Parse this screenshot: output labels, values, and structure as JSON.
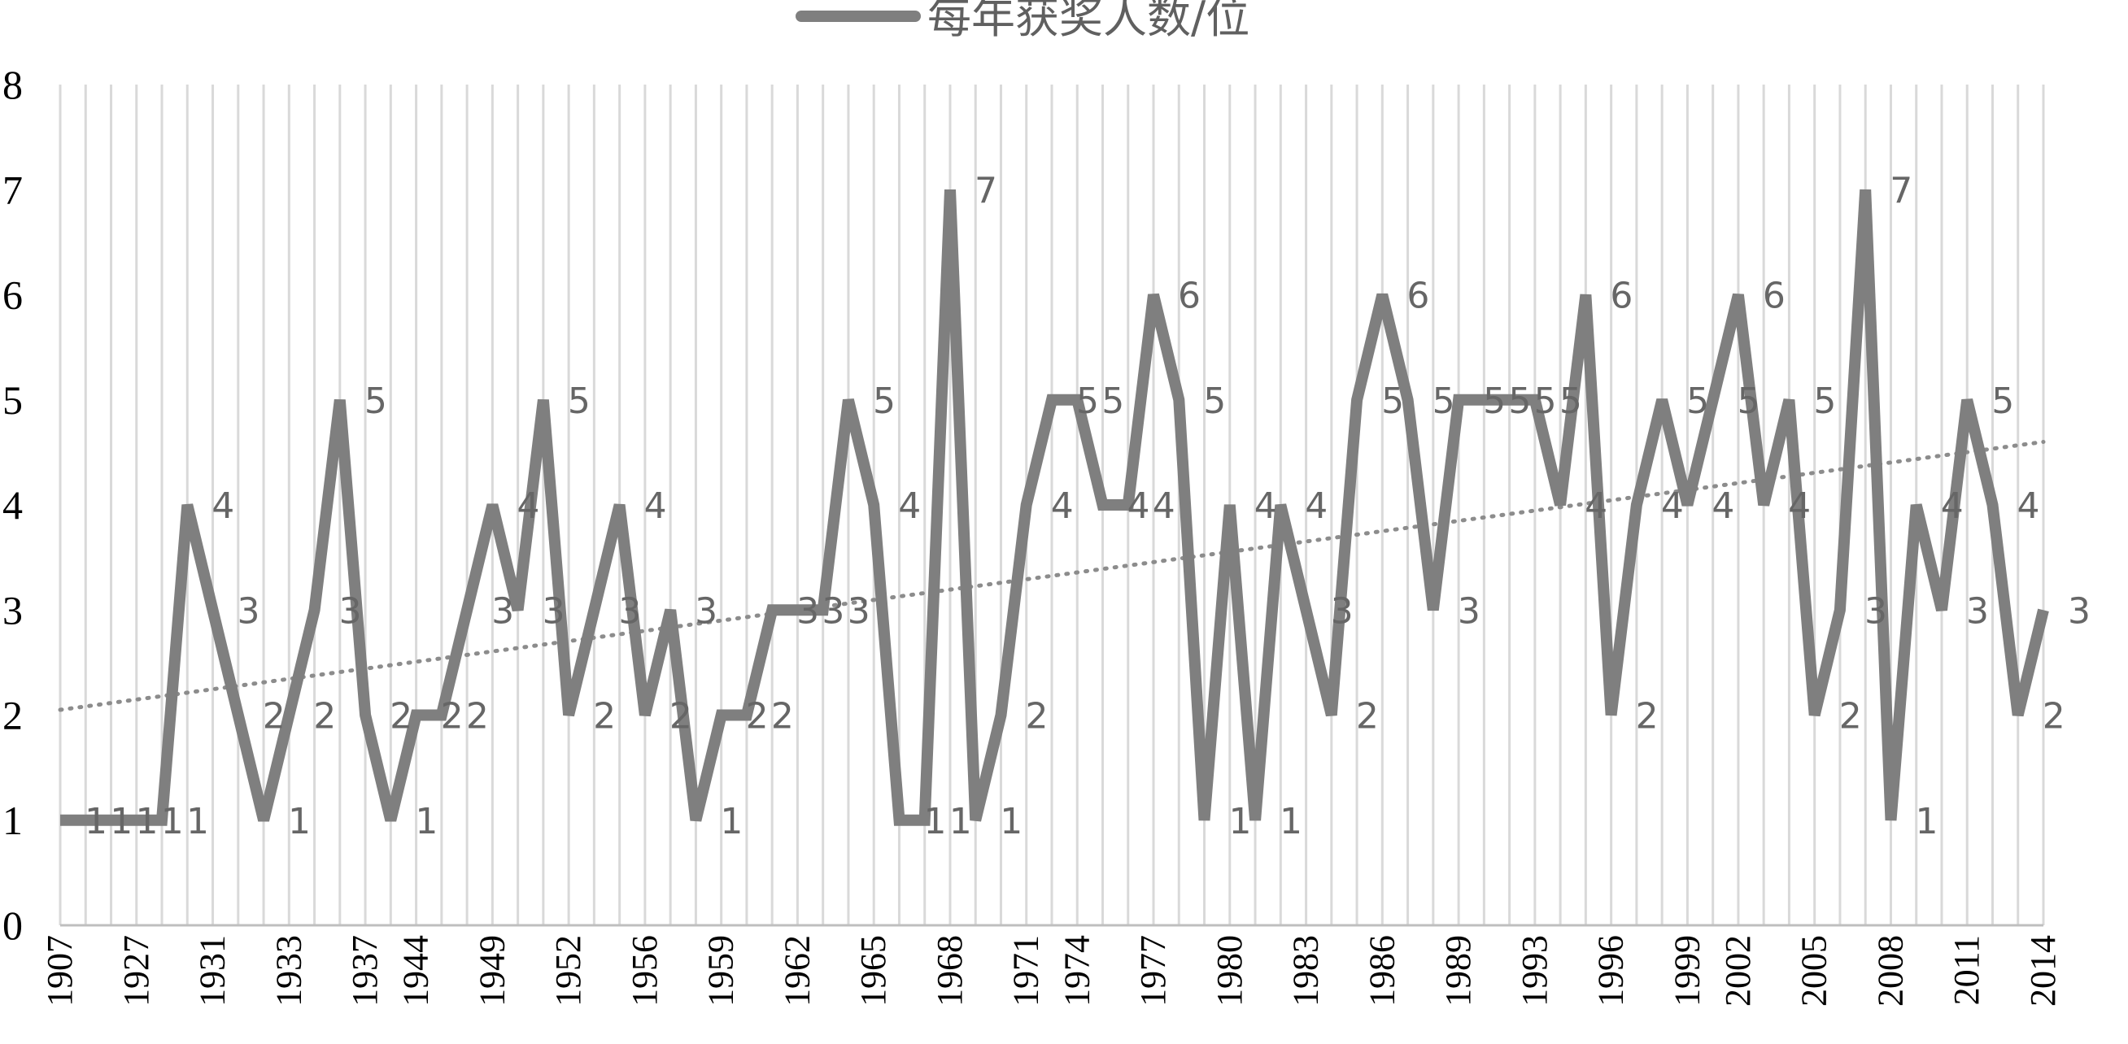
{
  "chart_data": {
    "type": "line",
    "title": "",
    "xlabel": "",
    "ylabel": "",
    "ylim": [
      0,
      8
    ],
    "yticks": [
      0,
      1,
      2,
      3,
      4,
      5,
      6,
      7,
      8
    ],
    "grid": "vertical",
    "legend": "top-center",
    "x_tick_labels": [
      "1907",
      "1927",
      "1931",
      "1933",
      "1937",
      "1944",
      "1949",
      "1952",
      "1956",
      "1959",
      "1962",
      "1965",
      "1968",
      "1971",
      "1974",
      "1977",
      "1980",
      "1983",
      "1986",
      "1989",
      "1993",
      "1996",
      "1999",
      "2002",
      "2005",
      "2008",
      "2011",
      "2014"
    ],
    "series": [
      {
        "name": "每年获奖人数/位",
        "color": "#7f7f7f",
        "values": [
          1,
          1,
          1,
          1,
          1,
          4,
          3,
          2,
          1,
          2,
          3,
          5,
          2,
          1,
          2,
          2,
          3,
          4,
          3,
          5,
          2,
          3,
          4,
          2,
          3,
          1,
          2,
          2,
          3,
          3,
          3,
          5,
          4,
          1,
          1,
          7,
          1,
          2,
          4,
          5,
          5,
          4,
          4,
          6,
          5,
          1,
          4,
          1,
          4,
          3,
          2,
          5,
          6,
          5,
          3,
          5,
          5,
          5,
          5,
          4,
          6,
          2,
          4,
          5,
          4,
          5,
          6,
          4,
          5,
          2,
          3,
          7,
          1,
          4,
          3,
          5,
          4,
          2,
          3
        ],
        "data_labels": [
          "1",
          "1",
          "1",
          "1",
          "1",
          "4",
          "3",
          "2",
          "1",
          "2",
          "3",
          "5",
          "2",
          "1",
          "2",
          "2",
          "3",
          "4",
          "3",
          "5",
          "2",
          "3",
          "4",
          "2",
          "3",
          "1",
          "2",
          "2",
          "3",
          "3",
          "3",
          "5",
          "4",
          "1",
          "1",
          "7",
          "1",
          "2",
          "4",
          "5",
          "5",
          "4",
          "4",
          "6",
          "5",
          "1",
          "4",
          "1",
          "4",
          "3",
          "2",
          "5",
          "6",
          "5",
          "3",
          "5",
          "5",
          "5",
          "5",
          "4",
          "6",
          "2",
          "4",
          "5",
          "4",
          "5",
          "6",
          "4",
          "5",
          "2",
          "3",
          "7",
          "1",
          "4",
          "3",
          "5",
          "4",
          "2",
          "3"
        ]
      },
      {
        "name": "",
        "kind": "linear-trendline",
        "color": "#8c8c8c",
        "start": 2.05,
        "end": 4.6
      }
    ]
  }
}
